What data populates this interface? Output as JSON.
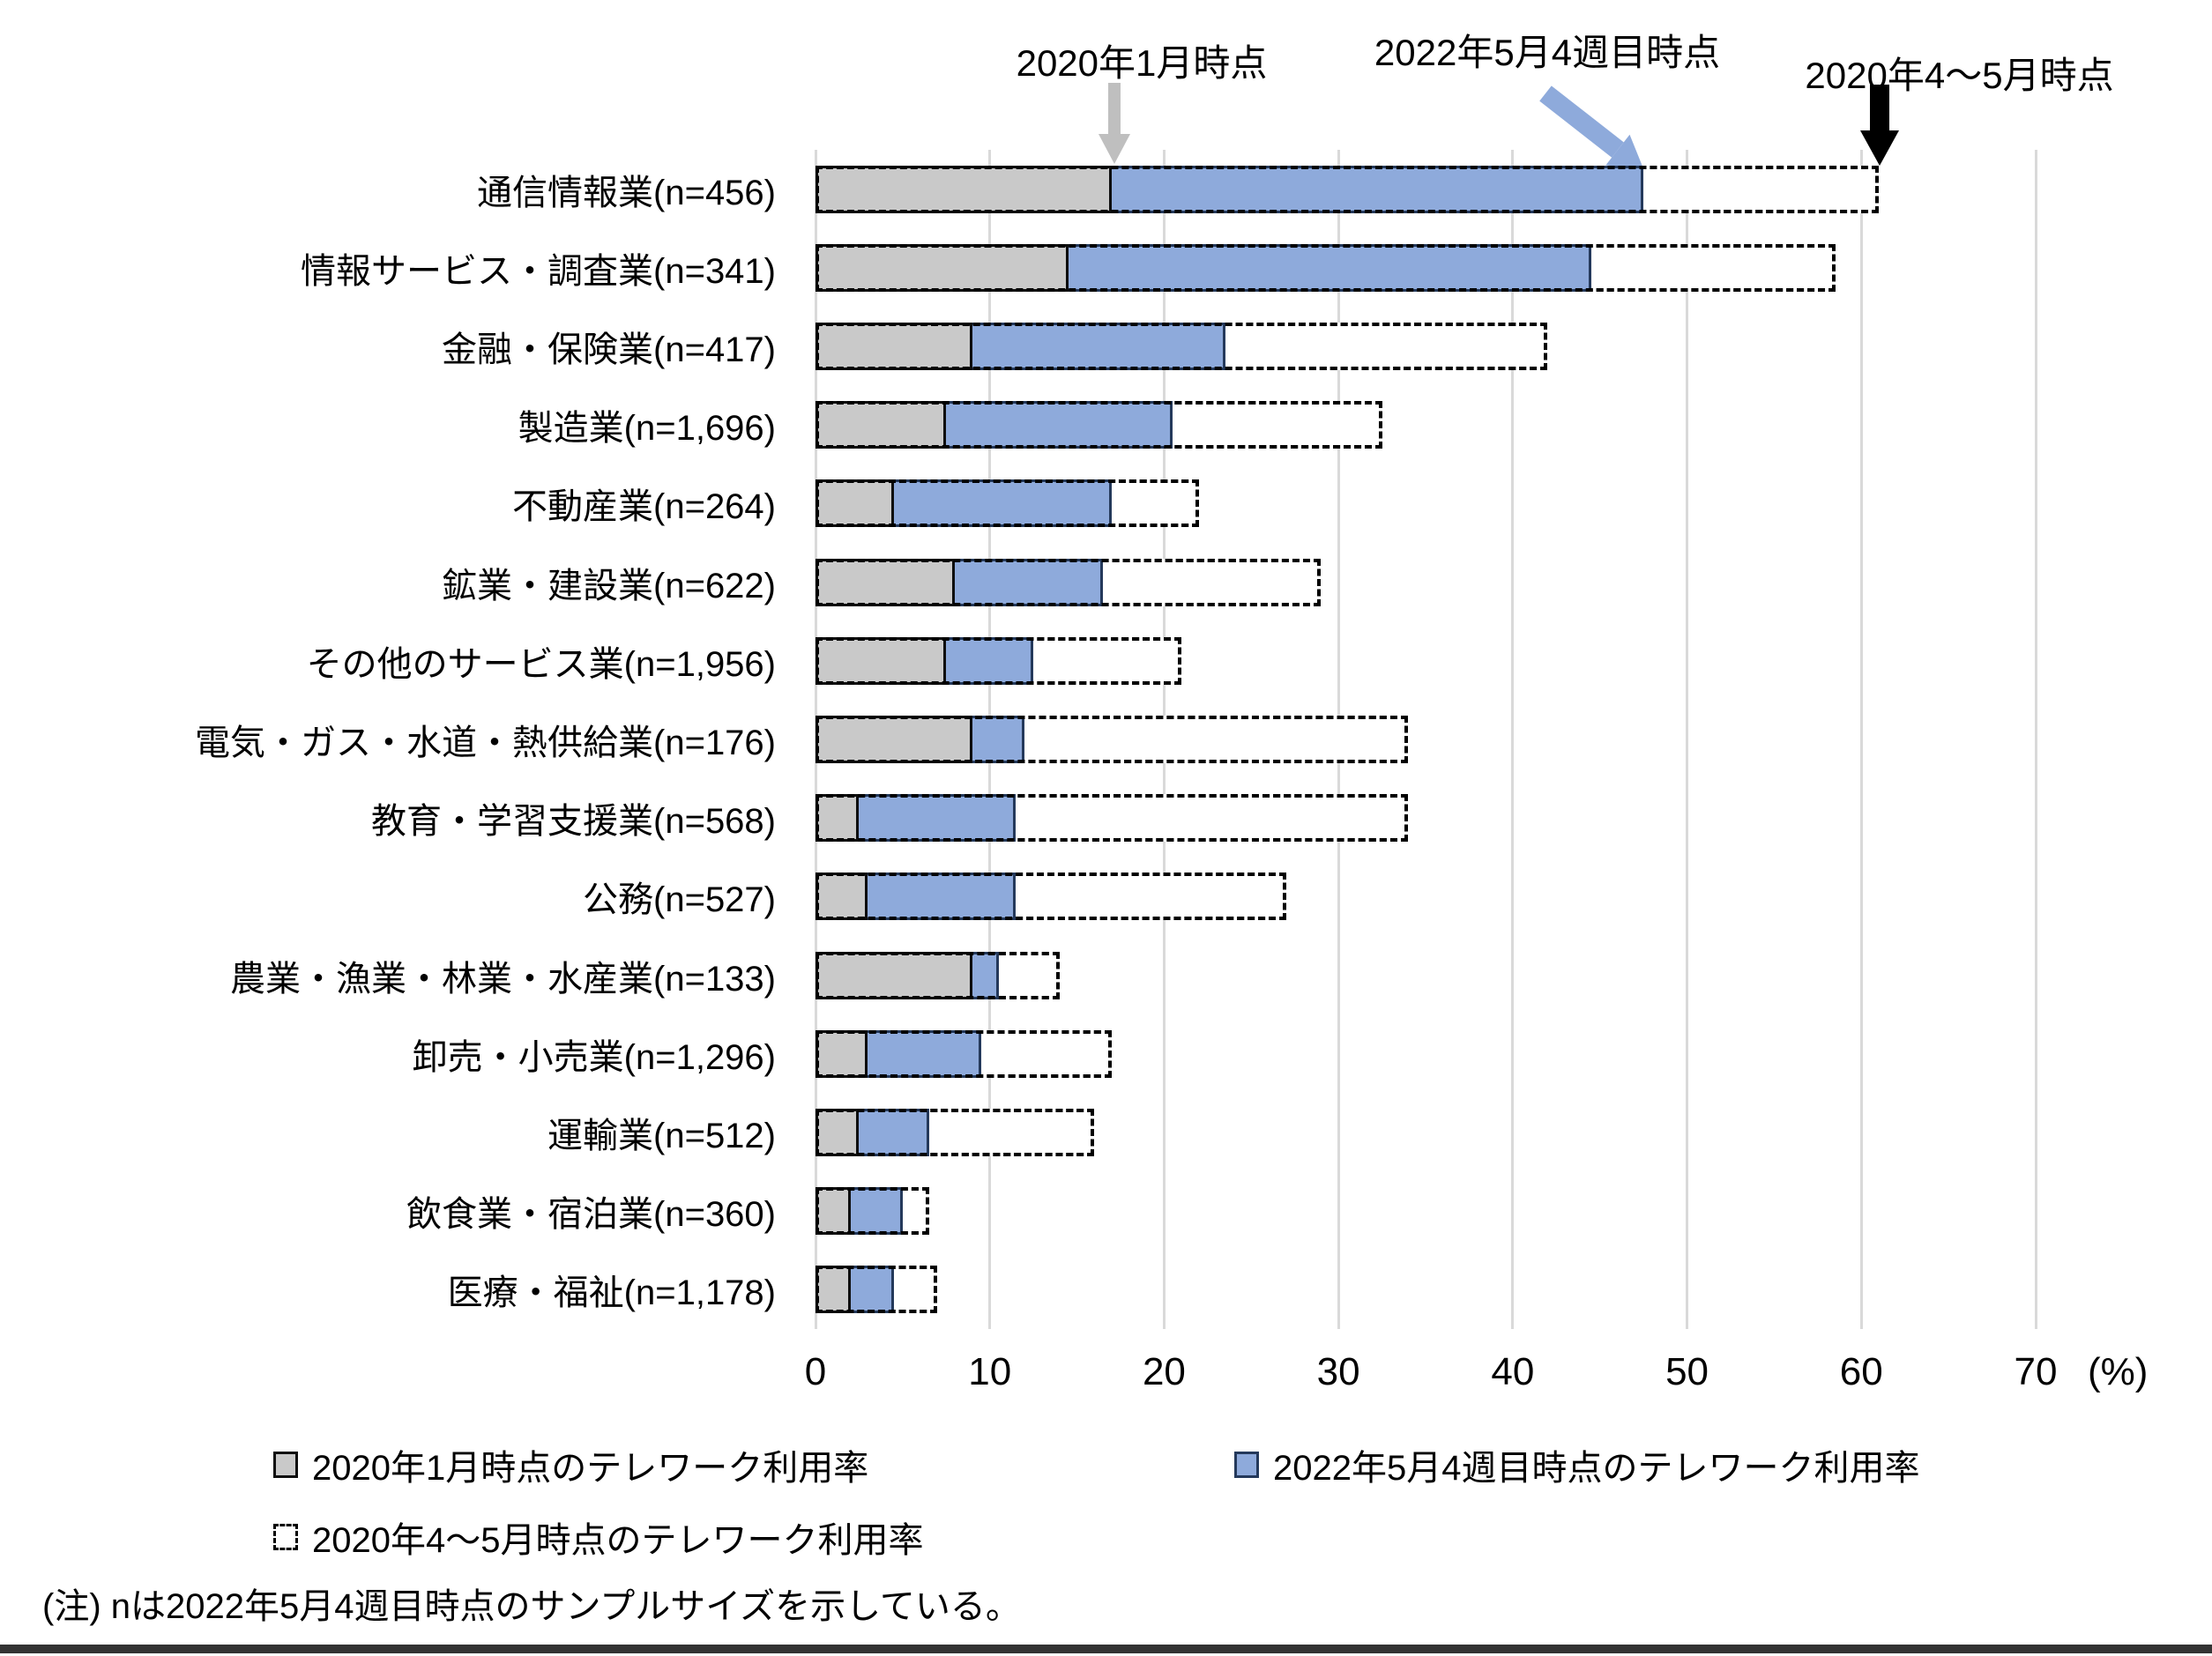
{
  "figure": {
    "note": "(注) nは2022年5月4週目時点のサンプルサイズを示している。"
  },
  "annotations": {
    "jan2020": "2020年1月時点",
    "may2022": "2022年5月4週目時点",
    "aprmay2020": "2020年4～5月時点"
  },
  "legend": {
    "items": [
      {
        "label": "2020年1月時点のテレワーク利用率",
        "style": "gray"
      },
      {
        "label": "2022年5月4週目時点のテレワーク利用率",
        "style": "blue"
      },
      {
        "label": "2020年4～5月時点のテレワーク利用率",
        "style": "dashed"
      }
    ]
  },
  "chart_data": {
    "type": "bar",
    "orientation": "horizontal",
    "title": "",
    "xlabel": "(%)",
    "xlim": [
      0,
      70
    ],
    "x_ticks": [
      0,
      10,
      20,
      30,
      40,
      50,
      60,
      70
    ],
    "grid": true,
    "legend_position": "bottom",
    "categories": [
      "通信情報業(n=456)",
      "情報サービス・調査業(n=341)",
      "金融・保険業(n=417)",
      "製造業(n=1,696)",
      "不動産業(n=264)",
      "鉱業・建設業(n=622)",
      "その他のサービス業(n=1,956)",
      "電気・ガス・水道・熱供給業(n=176)",
      "教育・学習支援業(n=568)",
      "公務(n=527)",
      "農業・漁業・林業・水産業(n=133)",
      "卸売・小売業(n=1,296)",
      "運輸業(n=512)",
      "飲食業・宿泊業(n=360)",
      "医療・福祉(n=1,178)"
    ],
    "series": [
      {
        "name": "2020年1月時点のテレワーク利用率",
        "style": "gray",
        "values": [
          17,
          14.5,
          9,
          7.5,
          4.5,
          8,
          7.5,
          9,
          2.5,
          3,
          9,
          3,
          2.5,
          2,
          2
        ]
      },
      {
        "name": "2022年5月4週目時点のテレワーク利用率",
        "style": "blue",
        "values": [
          47.5,
          44.5,
          23.5,
          20.5,
          17,
          16.5,
          12.5,
          12,
          11.5,
          11.5,
          10.5,
          9.5,
          6.5,
          5,
          4.5
        ]
      },
      {
        "name": "2020年4～5月時点のテレワーク利用率",
        "style": "dashed",
        "values": [
          61,
          58.5,
          42,
          32.5,
          22,
          29,
          21,
          34,
          34,
          27,
          14,
          17,
          16,
          6.5,
          7
        ]
      }
    ]
  },
  "colors": {
    "gray_fill": "#C9C9C9",
    "gray_border": "#0D0D0D",
    "blue_fill": "#8EAADB",
    "blue_border": "#24395B",
    "dashed_border": "#000000",
    "gridline": "#D9D9D9",
    "gray_arrow": "#BFBFBF",
    "blue_arrow": "#8EAADB",
    "black_arrow": "#000000"
  }
}
